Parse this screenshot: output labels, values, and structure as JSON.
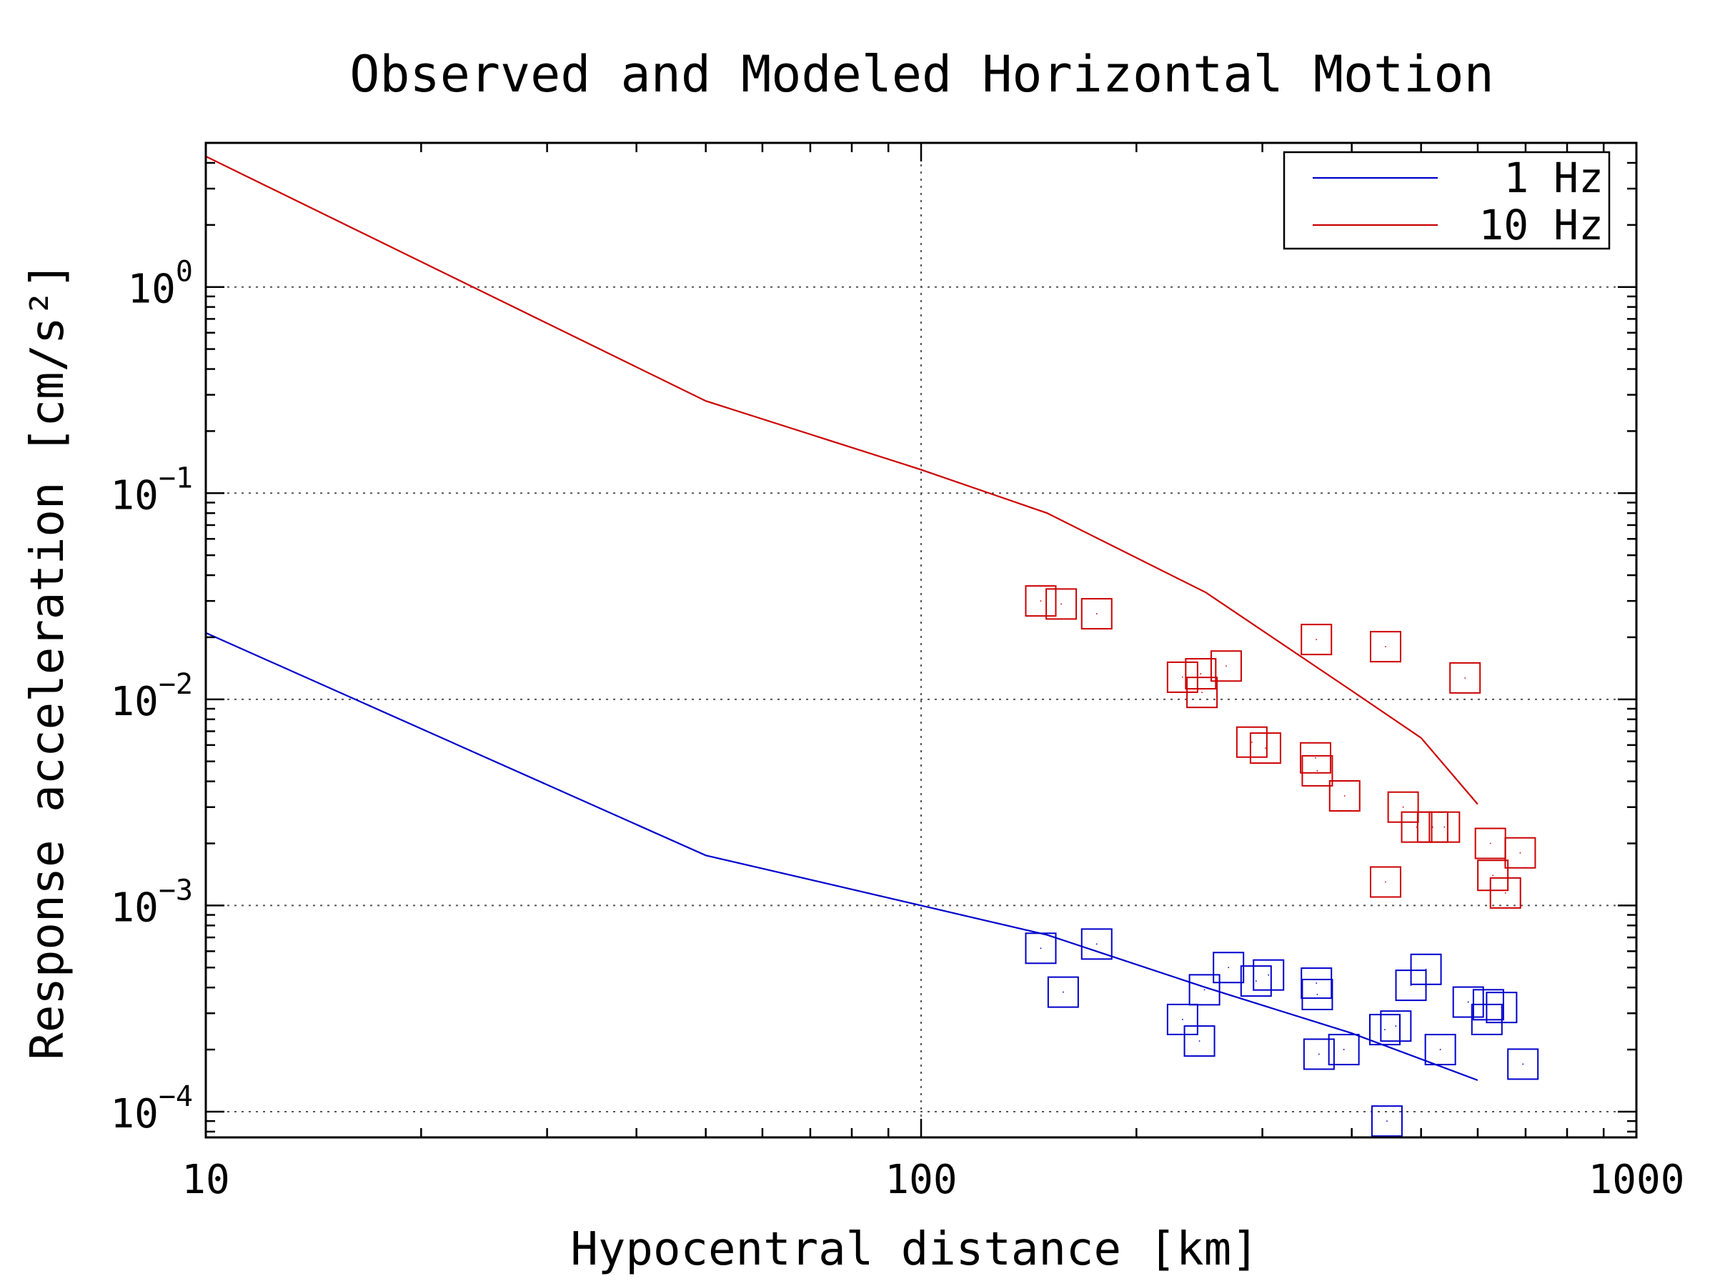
{
  "chart_data": {
    "type": "scatter",
    "title": "Observed and Modeled Horizontal Motion",
    "xlabel": "Hypocentral distance [km]",
    "ylabel": "Response acceleration [cm/s²]",
    "x_scale": "log",
    "y_scale": "log",
    "xlim": [
      10,
      1000
    ],
    "ylim": [
      7.5e-05,
      5
    ],
    "x_ticks": [
      {
        "value": 10,
        "label": "10"
      },
      {
        "value": 100,
        "label": "100"
      },
      {
        "value": 1000,
        "label": "1000"
      }
    ],
    "y_ticks": [
      {
        "value": 1,
        "base": "10",
        "exp": "0"
      },
      {
        "value": 0.1,
        "base": "10",
        "exp": "−1"
      },
      {
        "value": 0.01,
        "base": "10",
        "exp": "−2"
      },
      {
        "value": 0.001,
        "base": "10",
        "exp": "−3"
      },
      {
        "value": 0.0001,
        "base": "10",
        "exp": "−4"
      }
    ],
    "grid": true,
    "legend": {
      "position": "top-right"
    },
    "series": [
      {
        "name": "1 Hz",
        "color": "#0000cc",
        "model_line": [
          [
            10,
            0.021
          ],
          [
            50,
            0.00175
          ],
          [
            100,
            0.001
          ],
          [
            150,
            0.00072
          ],
          [
            250,
            0.0004
          ],
          [
            400,
            0.00024
          ],
          [
            600,
            0.000142
          ]
        ],
        "observed": [
          [
            147,
            0.00062
          ],
          [
            158,
            0.00038
          ],
          [
            176,
            0.00065
          ],
          [
            232,
            0.00028
          ],
          [
            245,
            0.00022
          ],
          [
            249,
            0.00039
          ],
          [
            269,
            0.0005
          ],
          [
            294,
            0.00043
          ],
          [
            306,
            0.00046
          ],
          [
            357,
            0.00042
          ],
          [
            358,
            0.00037
          ],
          [
            360,
            0.00019
          ],
          [
            390,
            0.0002
          ],
          [
            445,
            0.00025
          ],
          [
            461,
            0.00026
          ],
          [
            484,
            0.00041
          ],
          [
            508,
            0.00049
          ],
          [
            532,
            0.0002
          ],
          [
            582,
            0.00034
          ],
          [
            618,
            0.00028
          ],
          [
            621,
            0.00033
          ],
          [
            648,
            0.00032
          ],
          [
            694,
            0.00017
          ],
          [
            448,
            9e-05
          ]
        ]
      },
      {
        "name": "10 Hz",
        "color": "#cc0000",
        "model_line": [
          [
            10,
            4.3
          ],
          [
            50,
            0.28
          ],
          [
            100,
            0.13
          ],
          [
            150,
            0.08
          ],
          [
            250,
            0.033
          ],
          [
            400,
            0.011
          ],
          [
            500,
            0.0065
          ],
          [
            600,
            0.0031
          ]
        ],
        "observed": [
          [
            147,
            0.03
          ],
          [
            157,
            0.029
          ],
          [
            176,
            0.026
          ],
          [
            232,
            0.0128
          ],
          [
            246,
            0.0133
          ],
          [
            247,
            0.0108
          ],
          [
            267,
            0.0145
          ],
          [
            290,
            0.0062
          ],
          [
            303,
            0.0058
          ],
          [
            357,
            0.0195
          ],
          [
            356,
            0.0052
          ],
          [
            358,
            0.0045
          ],
          [
            391,
            0.0034
          ],
          [
            446,
            0.018
          ],
          [
            446,
            0.0013
          ],
          [
            472,
            0.003
          ],
          [
            493,
            0.0024
          ],
          [
            519,
            0.0024
          ],
          [
            539,
            0.0024
          ],
          [
            576,
            0.0127
          ],
          [
            625,
            0.002
          ],
          [
            630,
            0.0014
          ],
          [
            656,
            0.00115
          ],
          [
            688,
            0.0018
          ]
        ]
      }
    ]
  }
}
